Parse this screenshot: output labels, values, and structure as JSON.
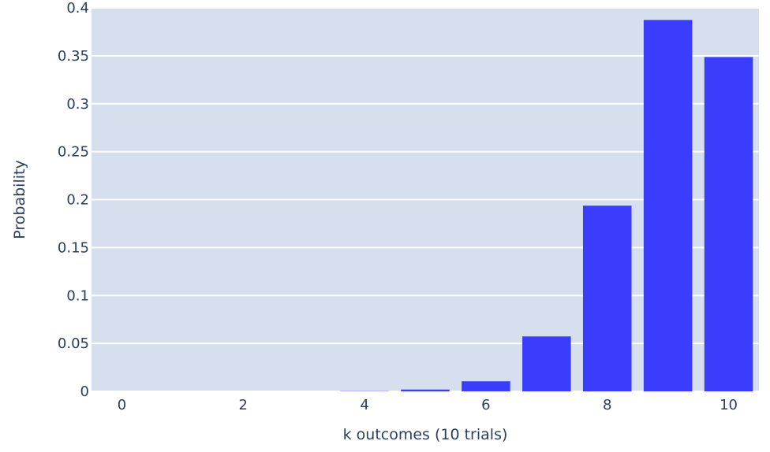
{
  "chart_data": {
    "type": "bar",
    "title": "",
    "xlabel": "k outcomes (10 trials)",
    "ylabel": "Probability",
    "categories": [
      0,
      1,
      2,
      3,
      4,
      5,
      6,
      7,
      8,
      9,
      10
    ],
    "values": [
      0.0,
      0.0,
      0.0,
      0.0,
      0.0003,
      0.0019,
      0.0105,
      0.0573,
      0.1937,
      0.3874,
      0.3487
    ],
    "xticks": [
      0,
      2,
      4,
      6,
      8,
      10
    ],
    "yticks": [
      0,
      0.05,
      0.1,
      0.15,
      0.2,
      0.25,
      0.3,
      0.35,
      0.4
    ],
    "ytick_labels": [
      "0",
      "0.05",
      "0.1",
      "0.15",
      "0.2",
      "0.25",
      "0.3",
      "0.35",
      "0.4"
    ],
    "xlim": [
      -0.5,
      10.5
    ],
    "ylim": [
      0,
      0.4
    ],
    "grid": true,
    "legend": "none",
    "colors": {
      "bar": "#3a3dfc",
      "plot_background": "#d5dfee",
      "grid": "#ffffff",
      "text": "#2a3f5f"
    }
  }
}
